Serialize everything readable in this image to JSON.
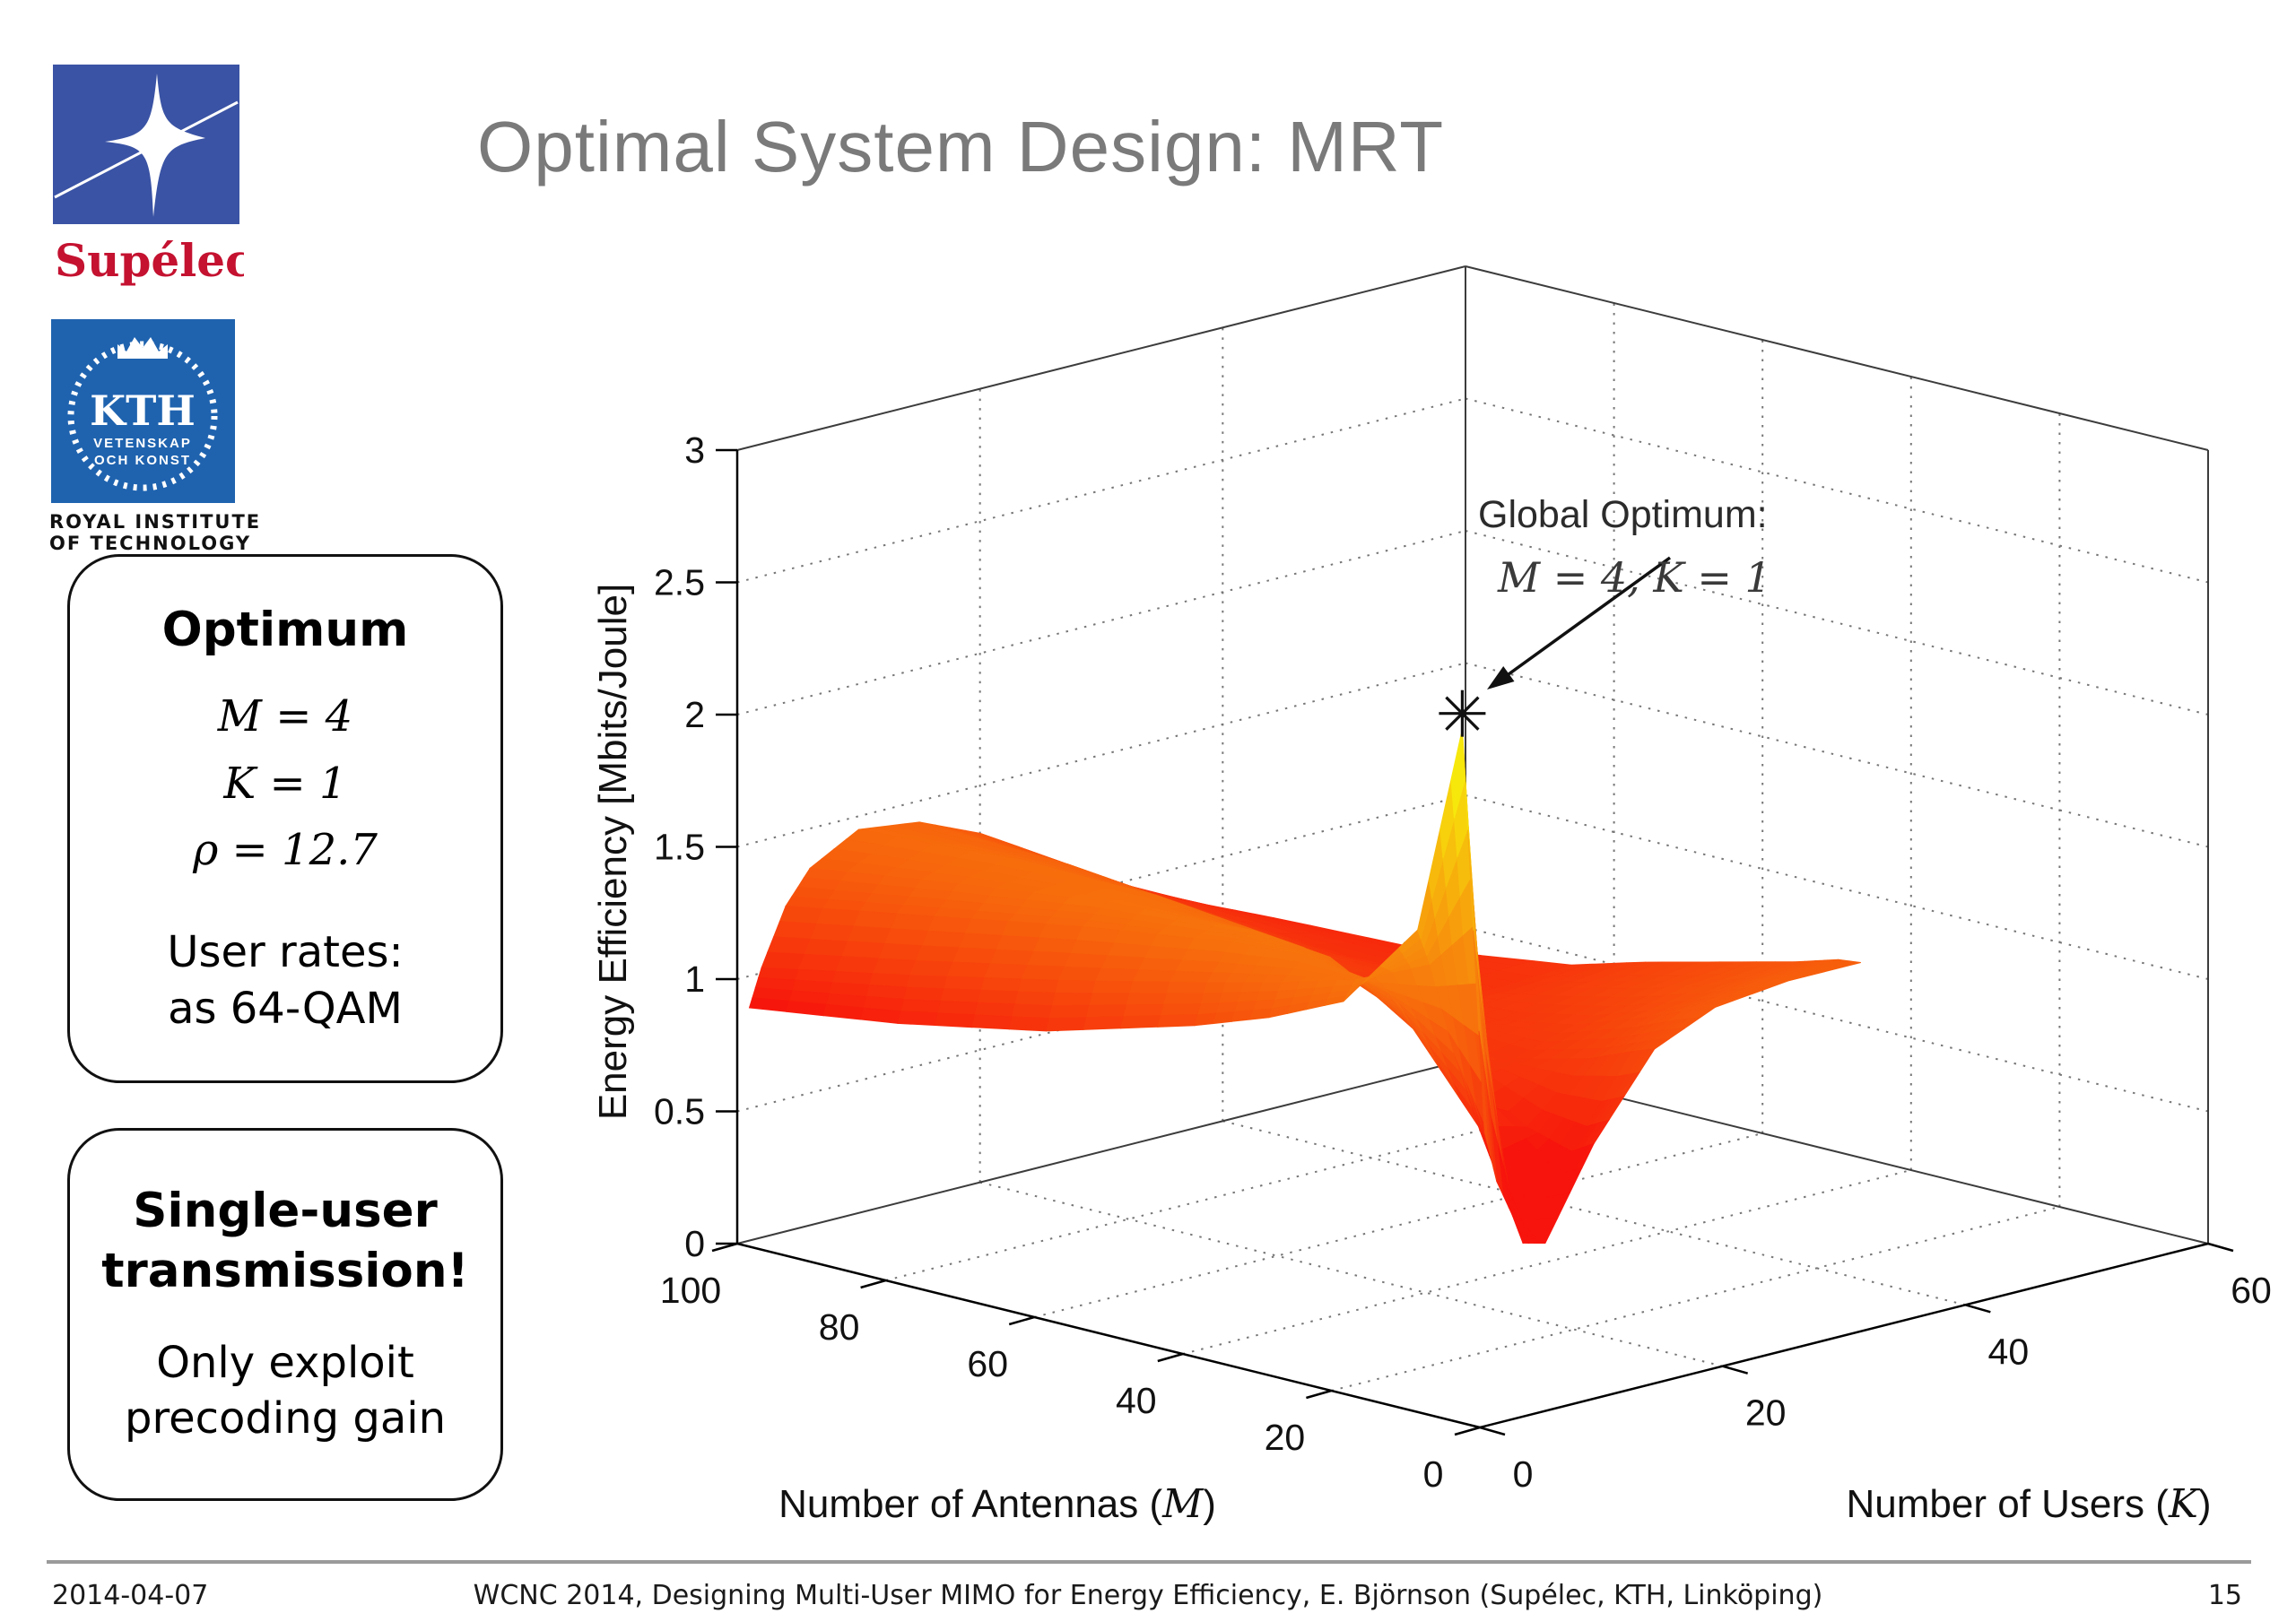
{
  "slide": {
    "title": "Optimal System Design: MRT",
    "date": "2014-04-07",
    "footer": "WCNC 2014, Designing Multi-User MIMO for Energy Efficiency, E. Björnson (Supélec, KTH, Linköping)",
    "page_number": "15"
  },
  "logos": {
    "supelec": {
      "wordmark": "Supélec",
      "square_color": "#3a53a4",
      "wordmark_color": "#c41230"
    },
    "kth": {
      "acronym": "KTH",
      "motto_line1": "VETENSKAP",
      "motto_line2": "OCH KONST",
      "caption_line1": "ROYAL INSTITUTE",
      "caption_line2": "OF TECHNOLOGY",
      "square_color": "#1f63af"
    }
  },
  "boxes": {
    "optimum": {
      "title": "Optimum",
      "math_lines": [
        "M = 4",
        "K = 1",
        "ρ = 12.7"
      ],
      "note_line1": "User rates:",
      "note_line2": "as 64-QAM"
    },
    "single_user": {
      "title_line1": "Single-user",
      "title_line2": "transmission!",
      "note_line1": "Only exploit",
      "note_line2": "precoding gain"
    }
  },
  "chart_data": {
    "type": "surface",
    "xlabel": "Number of Antennas (M)",
    "xlabel_parts": [
      "Number of Antennas (",
      "M",
      ")"
    ],
    "ylabel": "Number of Users (K)",
    "ylabel_parts": [
      "Number of Users (",
      "K",
      ")"
    ],
    "zlabel": "Energy Efficiency [Mbits/Joule]",
    "x_ticks": [
      100,
      80,
      60,
      40,
      20,
      0
    ],
    "y_ticks": [
      0,
      20,
      40,
      60
    ],
    "z_ticks": [
      0,
      0.5,
      1,
      1.5,
      2,
      2.5,
      3
    ],
    "x_range": [
      0,
      100
    ],
    "y_range": [
      0,
      60
    ],
    "z_range": [
      0,
      3
    ],
    "grid": "dotted",
    "colormap": "autumn",
    "annotation": {
      "line1": "Global Optimum:",
      "line2": "M = 4,  K = 1",
      "marker": "asterisk",
      "at": {
        "M": 4,
        "K": 1,
        "EE": 2.6
      }
    },
    "surface": {
      "M": [
        1,
        4,
        10,
        20,
        30,
        40,
        60,
        80,
        100
      ],
      "K": [
        1,
        2,
        4,
        6,
        10,
        15,
        20,
        26,
        32
      ],
      "EE": [
        [
          1.1,
          0.9,
          0.68,
          0.62,
          0.95,
          1.25,
          1.35,
          1.38,
          1.38
        ],
        [
          2.6,
          1.85,
          0.95,
          0.6,
          0.9,
          1.22,
          1.32,
          1.36,
          1.37
        ],
        [
          1.8,
          1.66,
          1.3,
          1.0,
          0.95,
          1.15,
          1.25,
          1.3,
          1.32
        ],
        [
          1.46,
          1.53,
          1.49,
          1.35,
          1.12,
          1.08,
          1.15,
          1.22,
          1.25
        ],
        [
          1.33,
          1.45,
          1.53,
          1.5,
          1.3,
          1.12,
          1.1,
          1.15,
          1.18
        ],
        [
          1.23,
          1.38,
          1.51,
          1.53,
          1.42,
          1.22,
          1.1,
          1.08,
          1.1
        ],
        [
          1.07,
          1.25,
          1.43,
          1.5,
          1.48,
          1.34,
          1.18,
          1.06,
          1.02
        ],
        [
          0.96,
          1.13,
          1.33,
          1.43,
          1.48,
          1.4,
          1.26,
          1.1,
          1.0
        ],
        [
          0.88,
          1.02,
          1.23,
          1.35,
          1.45,
          1.42,
          1.32,
          1.14,
          0.97
        ]
      ]
    }
  }
}
